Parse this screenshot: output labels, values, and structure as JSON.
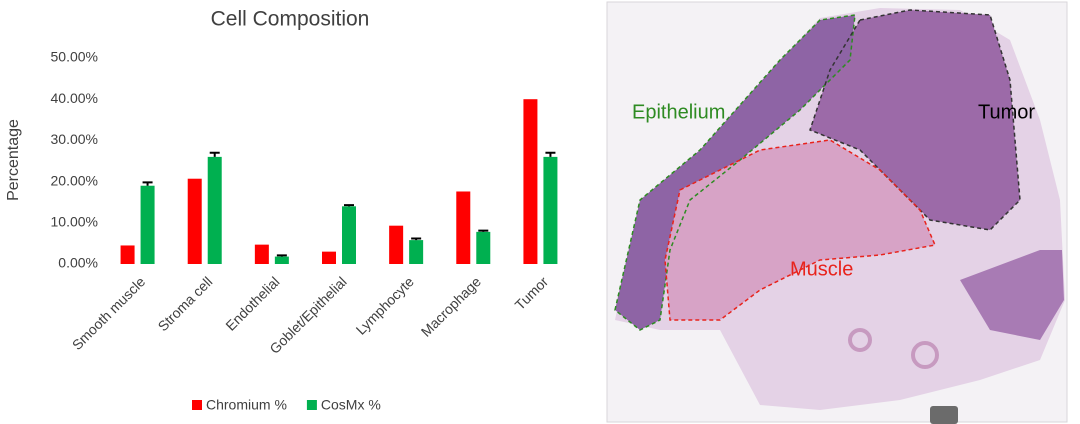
{
  "chart_data": {
    "type": "bar",
    "title": "Cell Composition",
    "ylabel": "Percentage",
    "categories": [
      "Smooth muscle",
      "Stroma cell",
      "Endothelial",
      "Goblet/Epithelial",
      "Lymphocyte",
      "Macrophage",
      "Tumor"
    ],
    "series": [
      {
        "name": "Chromium %",
        "color": "#ff0000",
        "values": [
          4.5,
          20.7,
          4.7,
          3.0,
          9.3,
          17.6,
          40.0
        ]
      },
      {
        "name": "CosMx %",
        "color": "#00b050",
        "values": [
          19.0,
          26.0,
          1.8,
          14.0,
          5.8,
          7.8,
          26.0
        ],
        "errors": [
          0.8,
          1.0,
          0.3,
          0.3,
          0.4,
          0.3,
          1.0
        ]
      }
    ],
    "ylim": [
      0,
      50
    ],
    "yticks": [
      {
        "value": 0,
        "label": "0.00%"
      },
      {
        "value": 10,
        "label": "10.00%"
      },
      {
        "value": 20,
        "label": "20.00%"
      },
      {
        "value": 30,
        "label": "30.00%"
      },
      {
        "value": 40,
        "label": "40.00%"
      },
      {
        "value": 50,
        "label": "50.00%"
      }
    ],
    "grid": false,
    "legend": "bottom"
  },
  "image": {
    "labels": [
      {
        "text": "Epithelium",
        "color": "#2e8b22"
      },
      {
        "text": "Tumor",
        "color": "#000000"
      },
      {
        "text": "Muscle",
        "color": "#e8231c"
      }
    ]
  }
}
